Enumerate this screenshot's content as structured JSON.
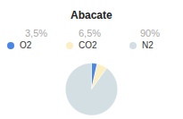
{
  "chart_data": {
    "type": "pie",
    "title": "Abacate",
    "categories": [
      "O2",
      "CO2",
      "N2"
    ],
    "values": [
      3.5,
      6.5,
      90
    ],
    "value_labels": [
      "3,5%",
      "6,5%",
      "90%"
    ],
    "colors": [
      "#4a86e8",
      "#fcefc4",
      "#d3dfe3"
    ],
    "data_labels": true,
    "legend": "top"
  }
}
